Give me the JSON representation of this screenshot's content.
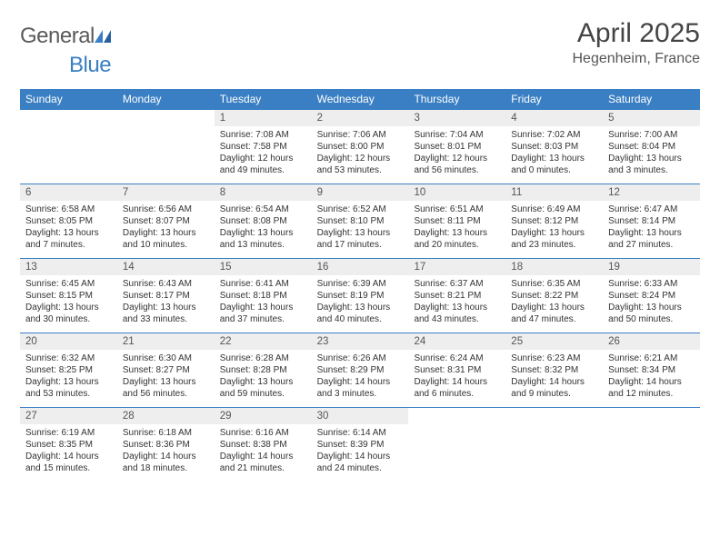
{
  "brand": {
    "text1": "General",
    "text2": "Blue"
  },
  "header": {
    "month_title": "April 2025",
    "location": "Hegenheim, France"
  },
  "colors": {
    "primary": "#3a7fc4",
    "day_header_bg": "#eeeeee",
    "text": "#333333",
    "muted": "#555555",
    "background": "#ffffff"
  },
  "days_of_week": [
    "Sunday",
    "Monday",
    "Tuesday",
    "Wednesday",
    "Thursday",
    "Friday",
    "Saturday"
  ],
  "weeks": [
    [
      {
        "n": "",
        "sr": "",
        "ss": "",
        "dl": ""
      },
      {
        "n": "",
        "sr": "",
        "ss": "",
        "dl": ""
      },
      {
        "n": "1",
        "sr": "Sunrise: 7:08 AM",
        "ss": "Sunset: 7:58 PM",
        "dl": "Daylight: 12 hours and 49 minutes."
      },
      {
        "n": "2",
        "sr": "Sunrise: 7:06 AM",
        "ss": "Sunset: 8:00 PM",
        "dl": "Daylight: 12 hours and 53 minutes."
      },
      {
        "n": "3",
        "sr": "Sunrise: 7:04 AM",
        "ss": "Sunset: 8:01 PM",
        "dl": "Daylight: 12 hours and 56 minutes."
      },
      {
        "n": "4",
        "sr": "Sunrise: 7:02 AM",
        "ss": "Sunset: 8:03 PM",
        "dl": "Daylight: 13 hours and 0 minutes."
      },
      {
        "n": "5",
        "sr": "Sunrise: 7:00 AM",
        "ss": "Sunset: 8:04 PM",
        "dl": "Daylight: 13 hours and 3 minutes."
      }
    ],
    [
      {
        "n": "6",
        "sr": "Sunrise: 6:58 AM",
        "ss": "Sunset: 8:05 PM",
        "dl": "Daylight: 13 hours and 7 minutes."
      },
      {
        "n": "7",
        "sr": "Sunrise: 6:56 AM",
        "ss": "Sunset: 8:07 PM",
        "dl": "Daylight: 13 hours and 10 minutes."
      },
      {
        "n": "8",
        "sr": "Sunrise: 6:54 AM",
        "ss": "Sunset: 8:08 PM",
        "dl": "Daylight: 13 hours and 13 minutes."
      },
      {
        "n": "9",
        "sr": "Sunrise: 6:52 AM",
        "ss": "Sunset: 8:10 PM",
        "dl": "Daylight: 13 hours and 17 minutes."
      },
      {
        "n": "10",
        "sr": "Sunrise: 6:51 AM",
        "ss": "Sunset: 8:11 PM",
        "dl": "Daylight: 13 hours and 20 minutes."
      },
      {
        "n": "11",
        "sr": "Sunrise: 6:49 AM",
        "ss": "Sunset: 8:12 PM",
        "dl": "Daylight: 13 hours and 23 minutes."
      },
      {
        "n": "12",
        "sr": "Sunrise: 6:47 AM",
        "ss": "Sunset: 8:14 PM",
        "dl": "Daylight: 13 hours and 27 minutes."
      }
    ],
    [
      {
        "n": "13",
        "sr": "Sunrise: 6:45 AM",
        "ss": "Sunset: 8:15 PM",
        "dl": "Daylight: 13 hours and 30 minutes."
      },
      {
        "n": "14",
        "sr": "Sunrise: 6:43 AM",
        "ss": "Sunset: 8:17 PM",
        "dl": "Daylight: 13 hours and 33 minutes."
      },
      {
        "n": "15",
        "sr": "Sunrise: 6:41 AM",
        "ss": "Sunset: 8:18 PM",
        "dl": "Daylight: 13 hours and 37 minutes."
      },
      {
        "n": "16",
        "sr": "Sunrise: 6:39 AM",
        "ss": "Sunset: 8:19 PM",
        "dl": "Daylight: 13 hours and 40 minutes."
      },
      {
        "n": "17",
        "sr": "Sunrise: 6:37 AM",
        "ss": "Sunset: 8:21 PM",
        "dl": "Daylight: 13 hours and 43 minutes."
      },
      {
        "n": "18",
        "sr": "Sunrise: 6:35 AM",
        "ss": "Sunset: 8:22 PM",
        "dl": "Daylight: 13 hours and 47 minutes."
      },
      {
        "n": "19",
        "sr": "Sunrise: 6:33 AM",
        "ss": "Sunset: 8:24 PM",
        "dl": "Daylight: 13 hours and 50 minutes."
      }
    ],
    [
      {
        "n": "20",
        "sr": "Sunrise: 6:32 AM",
        "ss": "Sunset: 8:25 PM",
        "dl": "Daylight: 13 hours and 53 minutes."
      },
      {
        "n": "21",
        "sr": "Sunrise: 6:30 AM",
        "ss": "Sunset: 8:27 PM",
        "dl": "Daylight: 13 hours and 56 minutes."
      },
      {
        "n": "22",
        "sr": "Sunrise: 6:28 AM",
        "ss": "Sunset: 8:28 PM",
        "dl": "Daylight: 13 hours and 59 minutes."
      },
      {
        "n": "23",
        "sr": "Sunrise: 6:26 AM",
        "ss": "Sunset: 8:29 PM",
        "dl": "Daylight: 14 hours and 3 minutes."
      },
      {
        "n": "24",
        "sr": "Sunrise: 6:24 AM",
        "ss": "Sunset: 8:31 PM",
        "dl": "Daylight: 14 hours and 6 minutes."
      },
      {
        "n": "25",
        "sr": "Sunrise: 6:23 AM",
        "ss": "Sunset: 8:32 PM",
        "dl": "Daylight: 14 hours and 9 minutes."
      },
      {
        "n": "26",
        "sr": "Sunrise: 6:21 AM",
        "ss": "Sunset: 8:34 PM",
        "dl": "Daylight: 14 hours and 12 minutes."
      }
    ],
    [
      {
        "n": "27",
        "sr": "Sunrise: 6:19 AM",
        "ss": "Sunset: 8:35 PM",
        "dl": "Daylight: 14 hours and 15 minutes."
      },
      {
        "n": "28",
        "sr": "Sunrise: 6:18 AM",
        "ss": "Sunset: 8:36 PM",
        "dl": "Daylight: 14 hours and 18 minutes."
      },
      {
        "n": "29",
        "sr": "Sunrise: 6:16 AM",
        "ss": "Sunset: 8:38 PM",
        "dl": "Daylight: 14 hours and 21 minutes."
      },
      {
        "n": "30",
        "sr": "Sunrise: 6:14 AM",
        "ss": "Sunset: 8:39 PM",
        "dl": "Daylight: 14 hours and 24 minutes."
      },
      {
        "n": "",
        "sr": "",
        "ss": "",
        "dl": ""
      },
      {
        "n": "",
        "sr": "",
        "ss": "",
        "dl": ""
      },
      {
        "n": "",
        "sr": "",
        "ss": "",
        "dl": ""
      }
    ]
  ]
}
